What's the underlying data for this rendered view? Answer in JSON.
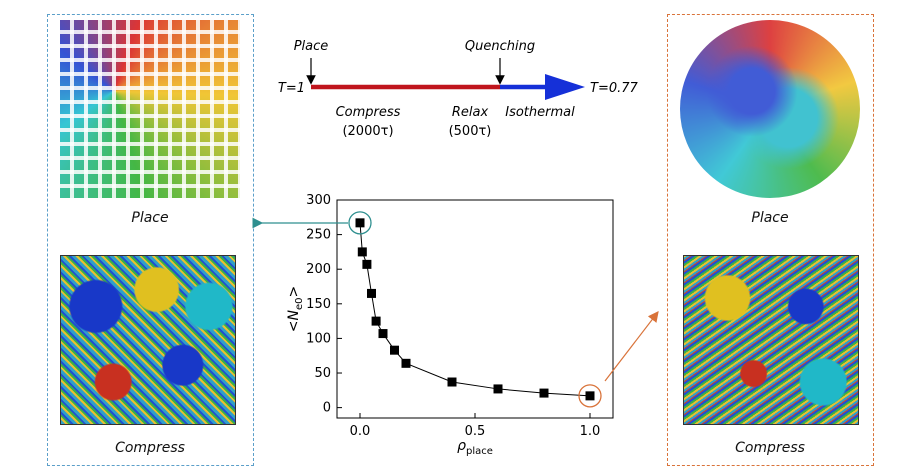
{
  "left_panel": {
    "border_color": "#5b9fc9",
    "top_caption": "Place",
    "bottom_caption": "Compress"
  },
  "right_panel": {
    "border_color": "#d9733a",
    "top_caption": "Place",
    "bottom_caption": "Compress"
  },
  "protocol": {
    "place_label": "Place",
    "quench_label": "Quenching",
    "start_temp": "T=1",
    "end_temp": "T=0.77",
    "compress_label": "Compress",
    "compress_time": "(2000τ)",
    "relax_label": "Relax",
    "relax_time": "(500τ)",
    "isothermal_label": "Isothermal",
    "red_color": "#c0151d",
    "blue_color": "#1530d8"
  },
  "chart_data": {
    "type": "scatter",
    "x": [
      0.0,
      0.01,
      0.03,
      0.05,
      0.07,
      0.1,
      0.15,
      0.2,
      0.4,
      0.6,
      0.8,
      1.0
    ],
    "y": [
      267,
      225,
      207,
      165,
      125,
      107,
      83,
      64,
      37,
      27,
      21,
      17
    ],
    "xlabel": "ρ",
    "xlabel_sub": "place",
    "ylabel": "<N",
    "ylabel_sub": "e0",
    "ylabel_end": ">",
    "xlim": [
      -0.1,
      1.1
    ],
    "ylim": [
      -15,
      300
    ],
    "xticks": [
      "0.0",
      "0.5",
      "1.0"
    ],
    "yticks": [
      "0",
      "50",
      "100",
      "150",
      "200",
      "250",
      "300"
    ],
    "highlight_left_color": "#2e8f8f",
    "highlight_right_color": "#d9733a"
  }
}
